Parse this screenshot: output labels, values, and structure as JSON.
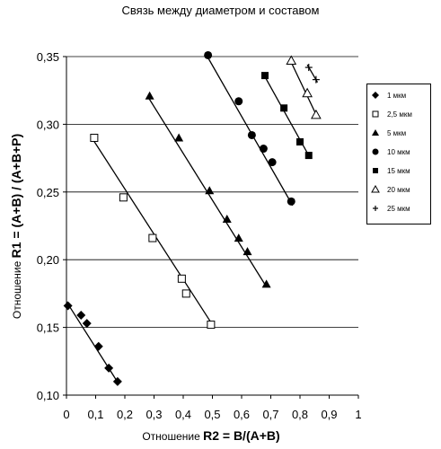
{
  "title": "Связь между диаметром и составом",
  "chart_data": {
    "type": "scatter",
    "title": "Связь между диаметром и составом",
    "xlabel_prefix": "Отношение",
    "xlabel_main": "R2 = B/(A+B)",
    "ylabel_prefix": "Отношение",
    "ylabel_main": "R1 = (A+B) / (A+B+P)",
    "xlim": [
      0,
      1
    ],
    "ylim": [
      0.1,
      0.35
    ],
    "x_ticks": [
      "0",
      "0,1",
      "0,2",
      "0,3",
      "0,4",
      "0,5",
      "0,6",
      "0,7",
      "0,8",
      "0,9",
      "1"
    ],
    "y_ticks": [
      "0,10",
      "0,15",
      "0,20",
      "0,25",
      "0,30",
      "0,35"
    ],
    "grid": "horizontal",
    "legend_position": "right",
    "series": [
      {
        "name": "1 мкм",
        "marker": "diamond",
        "points": [
          [
            0.005,
            0.166
          ],
          [
            0.05,
            0.159
          ],
          [
            0.07,
            0.153
          ],
          [
            0.11,
            0.136
          ],
          [
            0.145,
            0.12
          ],
          [
            0.175,
            0.11
          ]
        ],
        "trend": [
          [
            0.0,
            0.169
          ],
          [
            0.18,
            0.108
          ]
        ]
      },
      {
        "name": "2,5 мкм",
        "marker": "square-open",
        "points": [
          [
            0.095,
            0.29
          ],
          [
            0.195,
            0.246
          ],
          [
            0.295,
            0.216
          ],
          [
            0.395,
            0.186
          ],
          [
            0.41,
            0.175
          ],
          [
            0.495,
            0.152
          ]
        ],
        "trend": [
          [
            0.09,
            0.289
          ],
          [
            0.5,
            0.152
          ]
        ]
      },
      {
        "name": "5 мкм",
        "marker": "triangle",
        "points": [
          [
            0.285,
            0.321
          ],
          [
            0.385,
            0.29
          ],
          [
            0.49,
            0.251
          ],
          [
            0.55,
            0.23
          ],
          [
            0.59,
            0.216
          ],
          [
            0.62,
            0.206
          ],
          [
            0.685,
            0.182
          ]
        ],
        "trend": [
          [
            0.28,
            0.32
          ],
          [
            0.685,
            0.18
          ]
        ]
      },
      {
        "name": "10 мкм",
        "marker": "circle",
        "points": [
          [
            0.485,
            0.351
          ],
          [
            0.59,
            0.317
          ],
          [
            0.635,
            0.292
          ],
          [
            0.675,
            0.282
          ],
          [
            0.705,
            0.272
          ],
          [
            0.77,
            0.243
          ]
        ],
        "trend": [
          [
            0.48,
            0.351
          ],
          [
            0.775,
            0.24
          ]
        ]
      },
      {
        "name": "15 мкм",
        "marker": "square",
        "points": [
          [
            0.68,
            0.336
          ],
          [
            0.745,
            0.312
          ],
          [
            0.8,
            0.287
          ],
          [
            0.83,
            0.277
          ]
        ],
        "trend": [
          [
            0.675,
            0.337
          ],
          [
            0.835,
            0.275
          ]
        ]
      },
      {
        "name": "20 мкм",
        "marker": "triangle-open",
        "points": [
          [
            0.77,
            0.347
          ],
          [
            0.825,
            0.323
          ],
          [
            0.855,
            0.307
          ]
        ],
        "trend": [
          [
            0.765,
            0.348
          ],
          [
            0.86,
            0.305
          ]
        ]
      },
      {
        "name": "25 мкм",
        "marker": "plus",
        "points": [
          [
            0.83,
            0.342
          ],
          [
            0.855,
            0.333
          ]
        ],
        "trend": [
          [
            0.825,
            0.344
          ],
          [
            0.86,
            0.331
          ]
        ]
      }
    ]
  }
}
